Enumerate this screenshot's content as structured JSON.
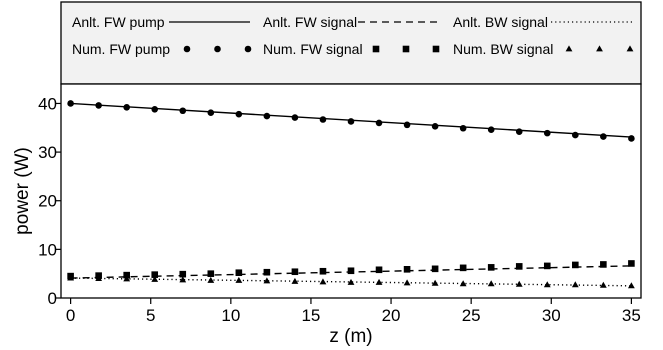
{
  "chart_data": {
    "type": "line",
    "title": "",
    "xlabel": "z (m)",
    "ylabel": "power (W)",
    "xlim": [
      -0.6,
      35.6
    ],
    "ylim": [
      0,
      44
    ],
    "x_ticks": [
      0,
      5,
      10,
      15,
      20,
      25,
      30,
      35
    ],
    "y_ticks": [
      0,
      10,
      20,
      30,
      40
    ],
    "grid": false,
    "legend_position": "top",
    "series": [
      {
        "name": "Anlt. FW pump",
        "kind": "line",
        "style": "solid",
        "x": [
          0,
          35
        ],
        "y": [
          40,
          33.1
        ]
      },
      {
        "name": "Anlt. FW signal",
        "kind": "line",
        "style": "dashed",
        "x": [
          0,
          35
        ],
        "y": [
          4.1,
          6.6
        ]
      },
      {
        "name": "Anlt. BW signal",
        "kind": "line",
        "style": "dotted",
        "x": [
          0,
          35
        ],
        "y": [
          4.1,
          2.5
        ]
      },
      {
        "name": "Num. FW pump",
        "kind": "marker",
        "marker": "circle",
        "x": [
          0,
          1.75,
          3.5,
          5.25,
          7,
          8.75,
          10.5,
          12.25,
          14,
          15.75,
          17.5,
          19.25,
          21,
          22.75,
          24.5,
          26.25,
          28,
          29.75,
          31.5,
          33.25,
          35
        ],
        "y": [
          40,
          39.6,
          39.2,
          38.8,
          38.5,
          38.1,
          37.8,
          37.4,
          37.1,
          36.7,
          36.3,
          36.0,
          35.6,
          35.3,
          34.9,
          34.6,
          34.2,
          33.9,
          33.5,
          33.2,
          32.8
        ]
      },
      {
        "name": "Num. FW signal",
        "kind": "marker",
        "marker": "square",
        "x": [
          0,
          1.75,
          3.5,
          5.25,
          7,
          8.75,
          10.5,
          12.25,
          14,
          15.75,
          17.5,
          19.25,
          21,
          22.75,
          24.5,
          26.25,
          28,
          29.75,
          31.5,
          33.25,
          35
        ],
        "y": [
          4.5,
          4.6,
          4.7,
          4.8,
          4.9,
          5.0,
          5.2,
          5.3,
          5.4,
          5.5,
          5.6,
          5.8,
          5.9,
          6.0,
          6.2,
          6.3,
          6.5,
          6.6,
          6.8,
          6.9,
          7.1
        ]
      },
      {
        "name": "Num. BW signal",
        "kind": "marker",
        "marker": "triangle",
        "x": [
          0,
          1.75,
          3.5,
          5.25,
          7,
          8.75,
          10.5,
          12.25,
          14,
          15.75,
          17.5,
          19.25,
          21,
          22.75,
          24.5,
          26.25,
          28,
          29.75,
          31.5,
          33.25,
          35
        ],
        "y": [
          4.1,
          4.0,
          3.9,
          3.8,
          3.7,
          3.6,
          3.6,
          3.5,
          3.4,
          3.3,
          3.2,
          3.2,
          3.1,
          3.0,
          2.9,
          2.9,
          2.8,
          2.7,
          2.7,
          2.6,
          2.5
        ]
      }
    ]
  }
}
